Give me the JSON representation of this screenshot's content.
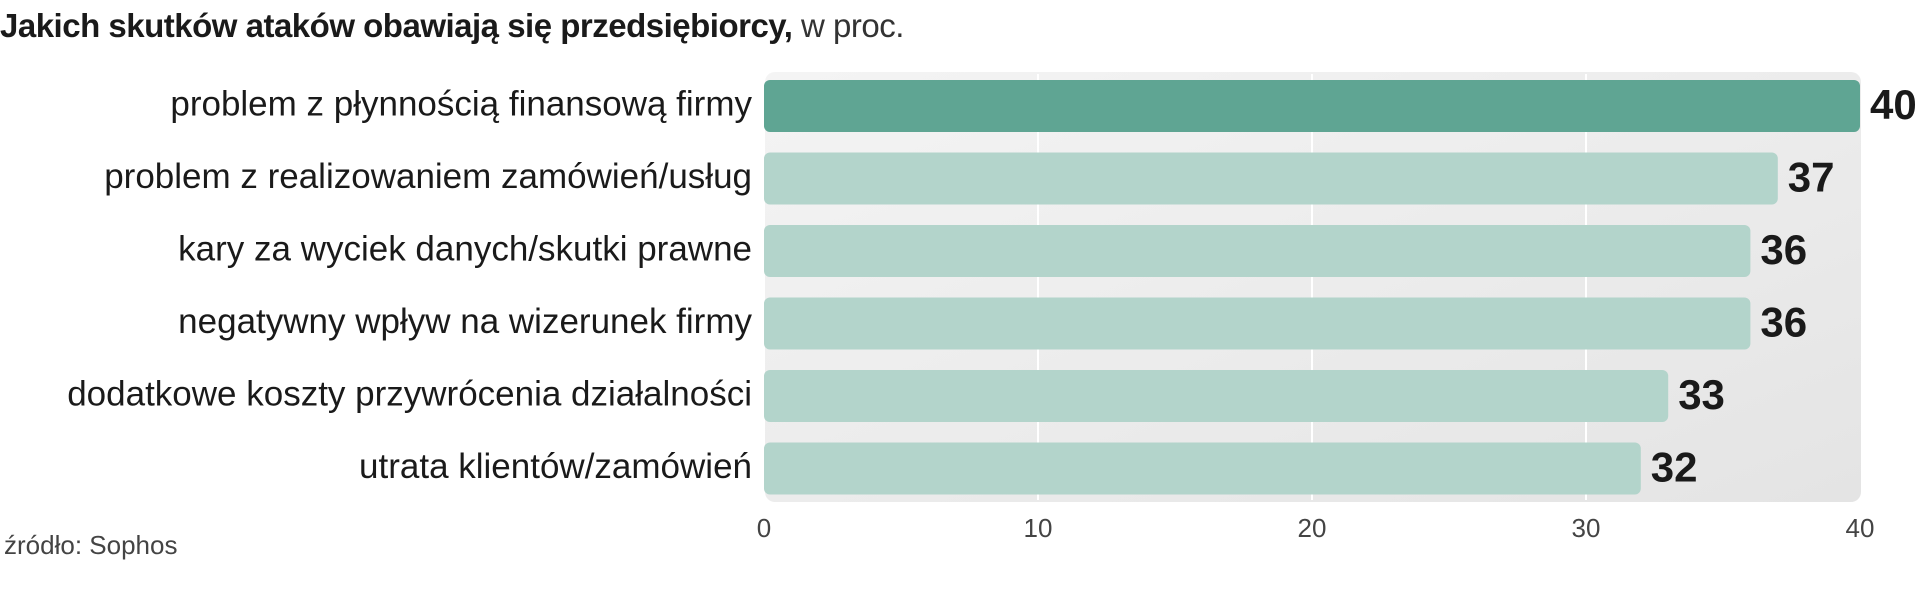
{
  "title": {
    "main": "Jakich skutków ataków obawiają się przedsiębiorcy,",
    "sub": " w proc."
  },
  "source": "źródło: Sophos",
  "colors": {
    "highlight_bar": "#5fa593",
    "bar": "#b3d4cb",
    "panel": "#ebebeb",
    "grid": "#ffffff"
  },
  "chart_data": {
    "type": "bar",
    "orientation": "horizontal",
    "categories": [
      "problem z płynnością finansową firmy",
      "problem z realizowaniem zamówień/usług",
      "kary za wyciek danych/skutki prawne",
      "negatywny wpływ na wizerunek firmy",
      "dodatkowe koszty przywrócenia działalności",
      "utrata klientów/zamówień"
    ],
    "values": [
      40,
      37,
      36,
      36,
      33,
      32
    ],
    "value_labels": [
      "40",
      "37",
      "36",
      "36",
      "33",
      "32"
    ],
    "highlight_index": 0,
    "xlim": [
      0,
      40
    ],
    "xticks": [
      0,
      10,
      20,
      30,
      40
    ],
    "xtick_labels": [
      "0",
      "10",
      "20",
      "30",
      "40"
    ],
    "grid": true
  }
}
